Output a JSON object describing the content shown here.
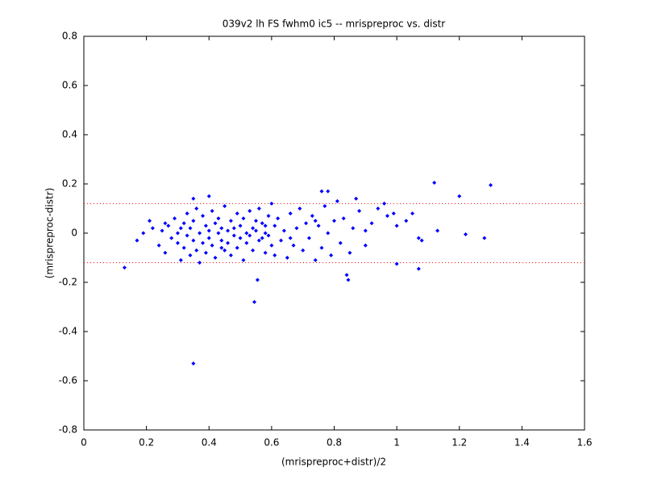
{
  "chart_data": {
    "type": "scatter",
    "title": "039v2 lh FS fwhm0 ic5 -- mrispreproc vs. distr",
    "x_label": "(mrispreproc+distr)/2",
    "y_label": "(mrispreproc-distr)",
    "color": "#0000ff",
    "reference_lines": {
      "values": [
        0.12,
        -0.12
      ],
      "color": "#ff0000"
    },
    "x": [
      0.22,
      0.24,
      0.25,
      0.26,
      0.27,
      0.28,
      0.29,
      0.3,
      0.3,
      0.31,
      0.32,
      0.32,
      0.33,
      0.33,
      0.34,
      0.34,
      0.35,
      0.35,
      0.36,
      0.36,
      0.37,
      0.37,
      0.38,
      0.38,
      0.39,
      0.39,
      0.4,
      0.4,
      0.41,
      0.41,
      0.42,
      0.42,
      0.43,
      0.43,
      0.44,
      0.44,
      0.45,
      0.45,
      0.46,
      0.46,
      0.47,
      0.47,
      0.48,
      0.48,
      0.49,
      0.49,
      0.5,
      0.5,
      0.51,
      0.51,
      0.52,
      0.52,
      0.53,
      0.53,
      0.54,
      0.54,
      0.55,
      0.55,
      0.56,
      0.56,
      0.57,
      0.57,
      0.58,
      0.58,
      0.59,
      0.59,
      0.6,
      0.6,
      0.61,
      0.61,
      0.62,
      0.63,
      0.64,
      0.65,
      0.66,
      0.67,
      0.68,
      0.69,
      0.7,
      0.71,
      0.72,
      0.73,
      0.74,
      0.75,
      0.76,
      0.77,
      0.78,
      0.79,
      0.8,
      0.81,
      0.82,
      0.83,
      0.85,
      0.86,
      0.88,
      0.9,
      0.92,
      0.94,
      0.97,
      1.0,
      1.03,
      1.05,
      0.26,
      0.31,
      0.44,
      0.58,
      0.66,
      0.74,
      0.9,
      0.99,
      0.13,
      0.35,
      0.545,
      0.555,
      1.12,
      1.2,
      1.3,
      1.13,
      1.22,
      1.28,
      1.07,
      0.845,
      0.84,
      1.07,
      1.08,
      1.0,
      0.96,
      0.87,
      0.78,
      0.76,
      0.4,
      0.35,
      0.17,
      0.19,
      0.21
    ],
    "values": [
      0.02,
      -0.05,
      0.01,
      -0.08,
      0.03,
      -0.02,
      0.06,
      -0.04,
      0.0,
      -0.11,
      0.04,
      -0.06,
      0.08,
      -0.01,
      0.02,
      -0.09,
      0.05,
      -0.03,
      0.1,
      -0.07,
      0.0,
      -0.12,
      0.07,
      -0.04,
      0.03,
      -0.08,
      0.01,
      -0.02,
      0.09,
      -0.05,
      0.04,
      -0.1,
      0.0,
      0.06,
      -0.03,
      0.02,
      -0.07,
      0.11,
      0.01,
      -0.04,
      0.05,
      -0.09,
      0.02,
      -0.01,
      0.08,
      -0.06,
      0.03,
      -0.02,
      -0.11,
      0.06,
      0.0,
      -0.04,
      0.09,
      -0.01,
      0.02,
      -0.07,
      0.01,
      0.05,
      -0.03,
      0.1,
      -0.02,
      0.04,
      0.0,
      -0.08,
      0.07,
      -0.01,
      0.12,
      -0.05,
      0.03,
      -0.09,
      0.06,
      -0.03,
      0.01,
      -0.1,
      0.08,
      -0.05,
      0.02,
      0.1,
      -0.07,
      0.04,
      -0.02,
      0.07,
      -0.11,
      0.03,
      -0.06,
      0.11,
      0.0,
      -0.09,
      0.05,
      0.13,
      -0.04,
      0.06,
      -0.08,
      0.02,
      0.09,
      -0.05,
      0.04,
      0.1,
      0.07,
      0.03,
      0.05,
      0.08,
      0.04,
      0.02,
      -0.06,
      0.03,
      -0.02,
      0.05,
      0.01,
      0.08,
      -0.14,
      -0.53,
      -0.28,
      -0.19,
      0.205,
      0.15,
      0.195,
      0.01,
      -0.005,
      -0.02,
      -0.145,
      -0.19,
      -0.17,
      -0.02,
      -0.03,
      -0.125,
      0.12,
      0.14,
      0.17,
      0.17,
      0.15,
      0.14,
      -0.03,
      0.0,
      0.05
    ],
    "xlim": [
      0,
      1.6
    ],
    "xticks": [
      0,
      0.2,
      0.4,
      0.6,
      0.8,
      1,
      1.2,
      1.4,
      1.6
    ],
    "ylim": [
      -0.8,
      0.8
    ],
    "yticks": [
      -0.8,
      -0.6,
      -0.4,
      -0.2,
      0,
      0.2,
      0.4,
      0.6,
      0.8
    ],
    "grid": false
  }
}
